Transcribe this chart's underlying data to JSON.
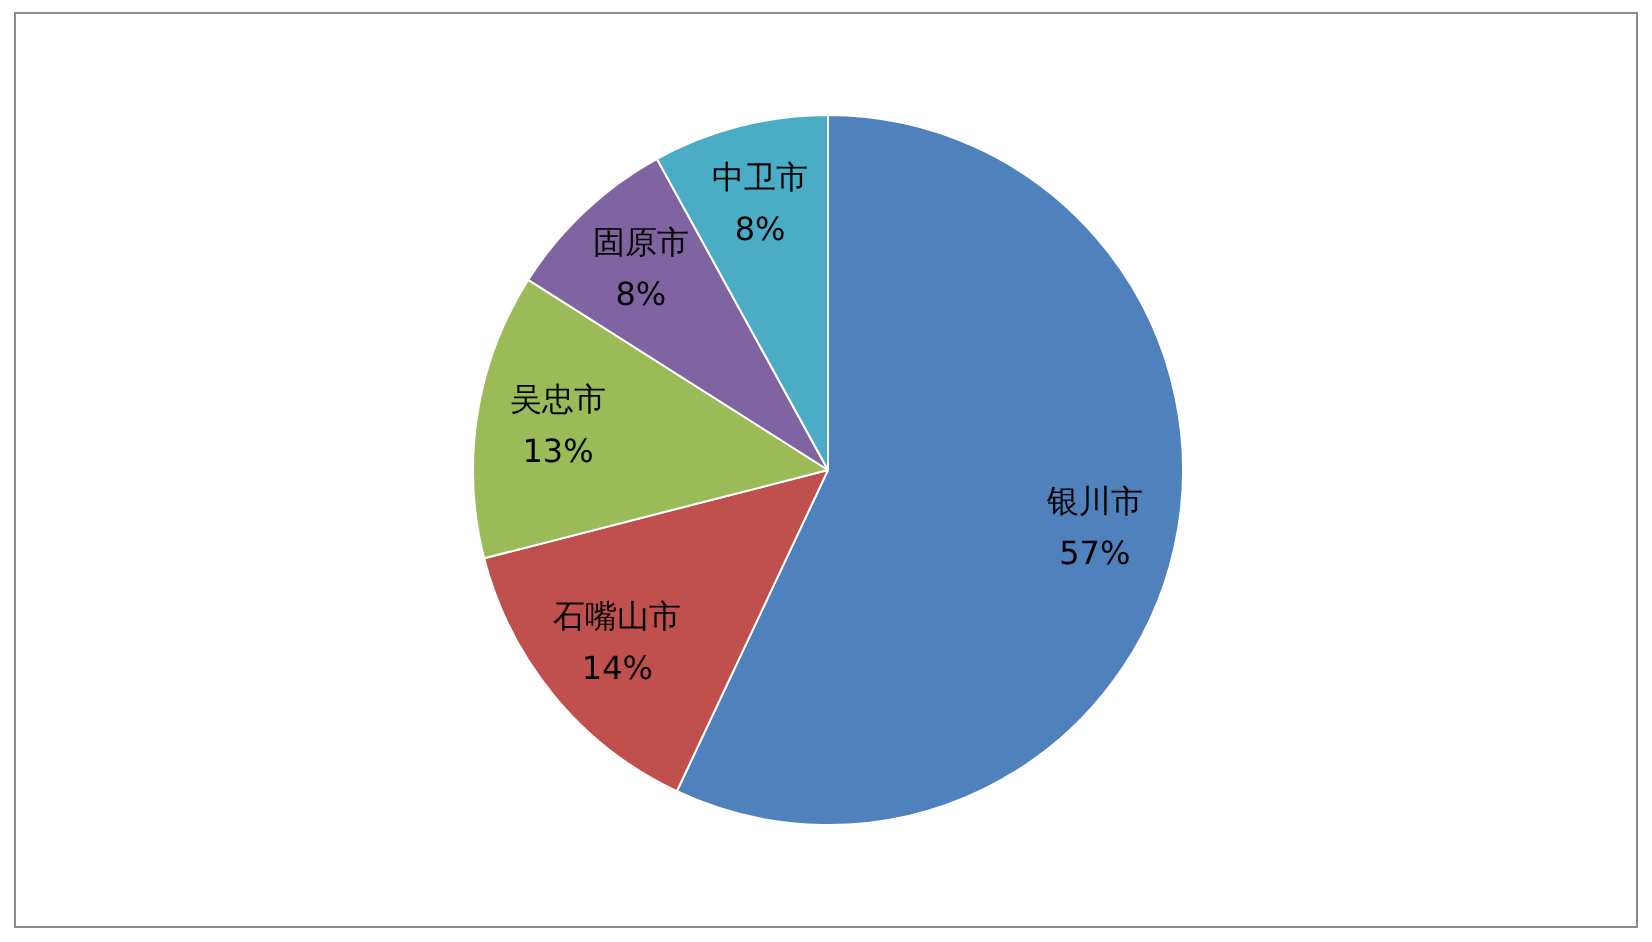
{
  "chart_data": {
    "type": "pie",
    "categories": [
      "银川市",
      "石嘴山市",
      "吴忠市",
      "固原市",
      "中卫市"
    ],
    "values": [
      57,
      14,
      13,
      8,
      8
    ],
    "value_labels": [
      "57%",
      "14%",
      "13%",
      "8%",
      "8%"
    ],
    "colors": [
      "#4f81bd",
      "#c0504d",
      "#9bbb59",
      "#8064a2",
      "#4bacc6"
    ],
    "legend": false
  }
}
